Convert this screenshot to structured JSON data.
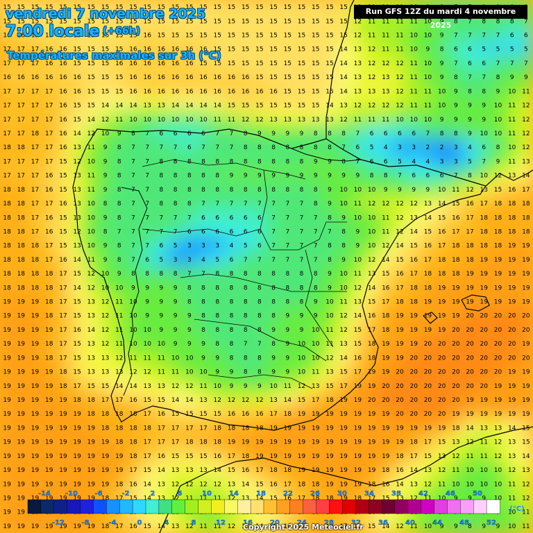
{
  "header": {
    "date": "vendredi 7 novembre 2025",
    "time": "7:00 locale",
    "offset": "(+66h)",
    "variable": "Températures maximales sur 3h (°C)"
  },
  "run_info": "Run GFS 12Z du mardi 4 novembre 2025",
  "copyright": "Copyright 2025 Meteociel.fr",
  "legend": {
    "unit": "(°C)",
    "top_labels": [
      "-14",
      "-10",
      "-6",
      "-2",
      "2",
      "6",
      "10",
      "14",
      "18",
      "22",
      "26",
      "30",
      "34",
      "38",
      "42",
      "46",
      "50"
    ],
    "bottom_labels": [
      "-12",
      "-8",
      "-4",
      "0",
      "4",
      "8",
      "12",
      "16",
      "20",
      "24",
      "28",
      "32",
      "36",
      "40",
      "44",
      "48",
      "52"
    ],
    "colors": [
      "#0a1a3c",
      "#0b2a66",
      "#10208a",
      "#1818b8",
      "#2020e0",
      "#1050ff",
      "#1890ff",
      "#20b8ff",
      "#30d8ff",
      "#40f0d0",
      "#40e080",
      "#60f040",
      "#a0f020",
      "#d0f020",
      "#f0f020",
      "#f8f860",
      "#fff0a0",
      "#ffe070",
      "#ffc030",
      "#ffa020",
      "#ff8020",
      "#ff6040",
      "#ff4040",
      "#ff1010",
      "#e00000",
      "#b00010",
      "#900020",
      "#700030",
      "#900060",
      "#b00090",
      "#d000c0",
      "#e040e0",
      "#f070f0",
      "#f8a0f8",
      "#ffd0ff",
      "#ffffff"
    ]
  },
  "map": {
    "grid_values": [
      "15 15 15 15 15 15 15 15 15 15 15 15 15 15 15 15 15 15 15 15 15 15 15 15 15 12 11 11 11 10 9 8 7 7 9 9 8 9",
      "15 15 15 15 15 15 15 15 15 15 15 15 15 15 15 15 15 15 15 15 15 15 15 15 15 12 11 11 11 11 10 9 8 7 8 8 8 7",
      "16 16 15 15 15 15 15 15 15 15 16 15 15 15 15 15 15 15 15 15 15 15 15 15 15 12 11 11 11 10 10 9 7 7 7 7 6 6",
      "17 17 17 16 16 15 15 15 15 16 16 16 16 16 16 15 15 15 15 15 15 15 15 15 14 13 12 11 11 10 9 8 6 6 5 5 5 5",
      "17 17 17 16 16 15 15 15 16 16 16 16 16 16 15 15 15 15 15 15 15 15 15 15 14 13 12 12 12 11 10 9 7 6 6 7 7 7",
      "16 16 16 16 16 16 15 15 15 16 16 16 16 16 16 16 16 16 15 15 15 15 15 15 14 13 12 13 12 11 10 9 8 7 7 8 9 9",
      "17 17 17 17 16 16 15 15 15 16 16 16 16 16 16 16 16 16 16 16 15 15 15 15 14 13 13 13 12 11 11 10 9 8 8 9 10 11",
      "17 17 17 17 16 15 15 14 14 14 13 13 14 14 14 14 15 15 15 15 15 15 15 14 13 12 12 12 12 11 11 10 9 9 9 10 11 12",
      "17 17 17 17 16 15 14 12 11 10 10 10 10 10 10 11 11 12 12 13 13 13 13 13 12 11 11 11 10 10 10 9 9 9 9 10 11 12",
      "17 17 18 17 16 14 12 10 9 8 7 6 6 6 6 7 7 8 9 9 9 9 8 8 8 7 6 6 6 6 7 8 8 9 10 10 11 12",
      "18 18 17 17 16 13 11 9 8 7 7 7 7 6 7 7 7 8 8 8 8 8 8 8 7 6 5 4 3 3 2 2 3 4 6 8 10 12",
      "17 17 17 17 15 12 10 9 8 7 7 8 8 8 8 8 8 8 8 8 8 8 9 9 8 7 6 6 5 4 4 3 3 5 7 9 11 13",
      "17 17 17 16 15 13 11 9 8 7 7 8 8 8 8 8 9 9 9 9 9 9 9 9 9 9 8 8 7 6 6 6 7 8 10 12 13 14",
      "18 18 17 16 15 13 11 9 8 7 7 8 8 8 8 8 8 8 8 8 8 8 8 9 10 10 10 9 9 9 9 10 11 12 13 15 16 17",
      "18 18 17 17 16 13 10 8 8 7 7 8 8 8 7 7 7 7 7 7 7 7 8 9 10 11 12 12 12 12 13 14 15 16 17 18 18 18",
      "18 18 17 16 15 13 10 9 8 7 7 7 7 7 6 6 6 6 6 7 7 7 7 8 9 10 10 11 12 13 14 15 16 17 18 18 18 18",
      "18 18 17 16 15 12 10 8 7 7 7 7 7 6 6 6 6 6 6 7 7 7 7 7 8 9 10 11 12 14 15 16 17 17 18 18 18 18",
      "18 18 18 17 15 13 10 9 8 7 7 6 5 3 3 3 4 5 6 7 7 7 7 8 8 9 10 12 14 15 16 17 18 18 18 18 19 19",
      "18 18 18 17 16 14 11 9 8 7 6 5 3 3 4 5 6 7 7 7 7 7 7 8 9 10 12 14 15 16 17 18 18 18 19 19 19 19",
      "18 18 18 18 17 15 12 10 9 8 8 8 8 7 7 8 8 8 8 8 8 8 8 9 10 11 13 15 16 17 18 18 18 19 19 19 19 19",
      "18 18 18 18 17 14 12 10 10 9 9 9 9 8 8 8 8 8 8 8 8 8 8 9 10 12 14 16 17 18 18 19 19 19 19 19 19 19",
      "19 19 19 18 17 15 13 12 11 10 9 9 9 8 8 8 8 8 8 8 8 8 9 10 11 13 15 17 18 18 19 19 19 19 19 19 19 19",
      "19 19 19 18 17 15 13 12 11 10 9 9 9 9 8 8 8 8 8 8 9 9 9 10 12 14 16 18 19 19 19 19 19 20 20 20 20 20",
      "19 19 19 19 17 16 14 12 11 10 10 9 9 9 8 8 8 8 8 9 9 9 10 11 12 15 17 18 19 19 19 19 20 20 20 20 20 20",
      "19 19 19 18 17 15 13 12 11 10 10 10 9 9 9 8 8 7 7 8 9 10 10 11 13 15 18 19 19 19 20 20 20 20 20 20 20 19",
      "19 19 19 18 17 15 13 13 12 11 11 11 10 10 9 9 8 8 8 9 9 10 10 12 14 16 18 19 19 20 20 20 20 20 20 20 20 20",
      "19 19 19 19 18 15 13 13 13 12 12 11 11 10 10 9 9 8 8 9 9 10 11 13 15 17 19 19 20 20 20 20 20 20 20 20 19 19",
      "19 19 19 19 18 17 15 15 14 14 13 13 12 12 11 10 9 9 9 10 11 12 13 15 17 19 19 20 20 20 20 20 20 20 20 19 19 19",
      "19 19 19 19 19 18 18 17 17 16 15 15 14 14 13 12 12 12 12 13 14 15 17 18 19 19 20 20 20 20 20 20 20 19 19 19 19 19",
      "19 19 19 19 19 19 18 18 18 18 17 16 15 15 15 15 16 16 16 17 18 19 19 19 19 19 19 19 20 20 20 20 19 19 19 19 19 19",
      "19 19 19 19 19 19 19 18 18 18 18 17 17 17 17 18 18 18 18 19 19 19 19 19 19 19 19 19 19 19 19 19 18 14 13 13 14 15",
      "19 19 19 19 19 19 19 19 18 18 17 17 17 18 18 18 19 19 19 19 19 19 19 19 19 19 19 19 19 18 17 15 13 12 11 12 13 15",
      "19 19 19 19 19 19 19 19 19 18 17 16 15 15 15 16 17 18 19 19 19 19 19 19 19 19 19 19 18 17 15 13 12 11 11 12 13 14",
      "19 19 19 19 19 19 19 19 19 17 15 14 13 13 13 14 15 16 17 18 18 19 19 19 19 19 19 18 16 14 13 12 11 10 10 10 12 13",
      "19 19 19 19 19 19 19 19 18 16 14 13 12 12 12 12 13 14 15 16 17 18 18 19 19 19 18 16 14 13 12 11 10 10 10 10 11 12",
      "19 19 19 19 19 19 19 18 17 15 14 13 12 11 11 11 12 13 14 15 16 17 18 18 19 18 17 15 13 12 11 10 9 9 9 10 11 12",
      "19 19 19 19 19 19 19 18 17 15 14 13 12 11 10 10 11 12 13 14 15 17 18 18 18 17 16 14 13 11 10 10 9 9 9 9 10 11",
      "19 19 19 19 19 19 19 18 17 16 15 14 13 12 11 11 12 13 14 15 16 17 18 18 17 16 15 14 12 11 10 9 9 8 9 9 10 11"
    ]
  }
}
